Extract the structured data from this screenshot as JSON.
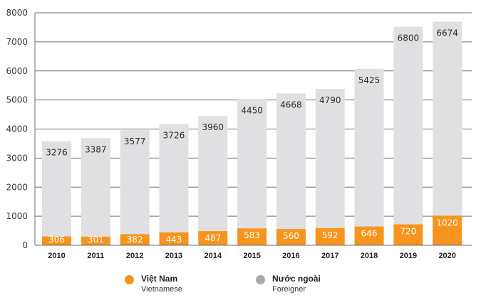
{
  "chart_data": {
    "type": "bar",
    "stacked": true,
    "title": "",
    "xlabel": "",
    "ylabel": "",
    "ylim": [
      0,
      8000
    ],
    "yticks": [
      0,
      1000,
      2000,
      3000,
      4000,
      5000,
      6000,
      7000,
      8000
    ],
    "grid": true,
    "legend_position": "bottom",
    "categories": [
      "2010",
      "2011",
      "2012",
      "2013",
      "2014",
      "2015",
      "2016",
      "2017",
      "2018",
      "2019",
      "2020"
    ],
    "series": [
      {
        "name": "Việt Nam",
        "subtitle": "Vietnamese",
        "color": "#f7941d",
        "values": [
          306,
          301,
          382,
          443,
          487,
          583,
          560,
          592,
          646,
          720,
          1020
        ]
      },
      {
        "name": "Nước ngoài",
        "subtitle": "Foreigner",
        "color": "#e0e0e2",
        "legend_color": "#a7a9ac",
        "values": [
          3276,
          3387,
          3577,
          3726,
          3960,
          4450,
          4668,
          4790,
          5425,
          6800,
          6674
        ]
      }
    ]
  }
}
